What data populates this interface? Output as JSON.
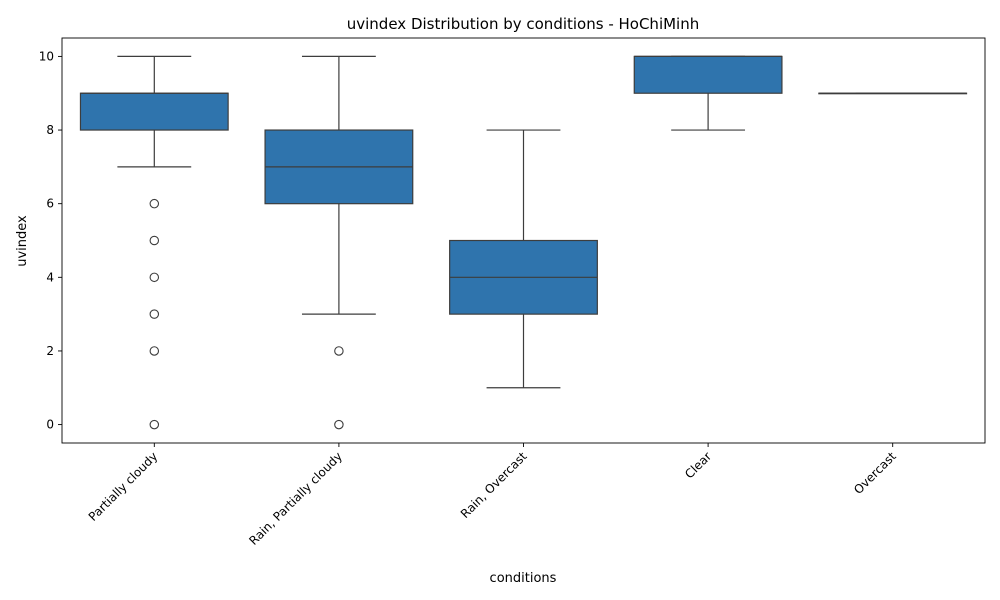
{
  "chart_data": {
    "type": "box",
    "title": "uvindex Distribution by conditions - HoChiMinh",
    "xlabel": "conditions",
    "ylabel": "uvindex",
    "ylim": [
      -0.5,
      10.5
    ],
    "yticks": [
      "0",
      "2",
      "4",
      "6",
      "8",
      "10"
    ],
    "box_color": "#2f74ad",
    "line_color": "#3d3d3d",
    "categories": [
      "Partially cloudy",
      "Rain, Partially cloudy",
      "Rain, Overcast",
      "Clear",
      "Overcast"
    ],
    "boxes": [
      {
        "category": "Partially cloudy",
        "whisker_low": 7,
        "q1": 8,
        "median": 9,
        "q3": 9,
        "whisker_high": 10,
        "outliers": [
          6,
          5,
          4,
          3,
          2,
          0
        ]
      },
      {
        "category": "Rain, Partially cloudy",
        "whisker_low": 3,
        "q1": 6,
        "median": 7,
        "q3": 8,
        "whisker_high": 10,
        "outliers": [
          2,
          0
        ]
      },
      {
        "category": "Rain, Overcast",
        "whisker_low": 1,
        "q1": 3,
        "median": 4,
        "q3": 5,
        "whisker_high": 8,
        "outliers": []
      },
      {
        "category": "Clear",
        "whisker_low": 8,
        "q1": 9,
        "median": 10,
        "q3": 10,
        "whisker_high": 10,
        "outliers": []
      },
      {
        "category": "Overcast",
        "whisker_low": 9,
        "q1": 9,
        "median": 9,
        "q3": 9,
        "whisker_high": 9,
        "outliers": []
      }
    ]
  }
}
